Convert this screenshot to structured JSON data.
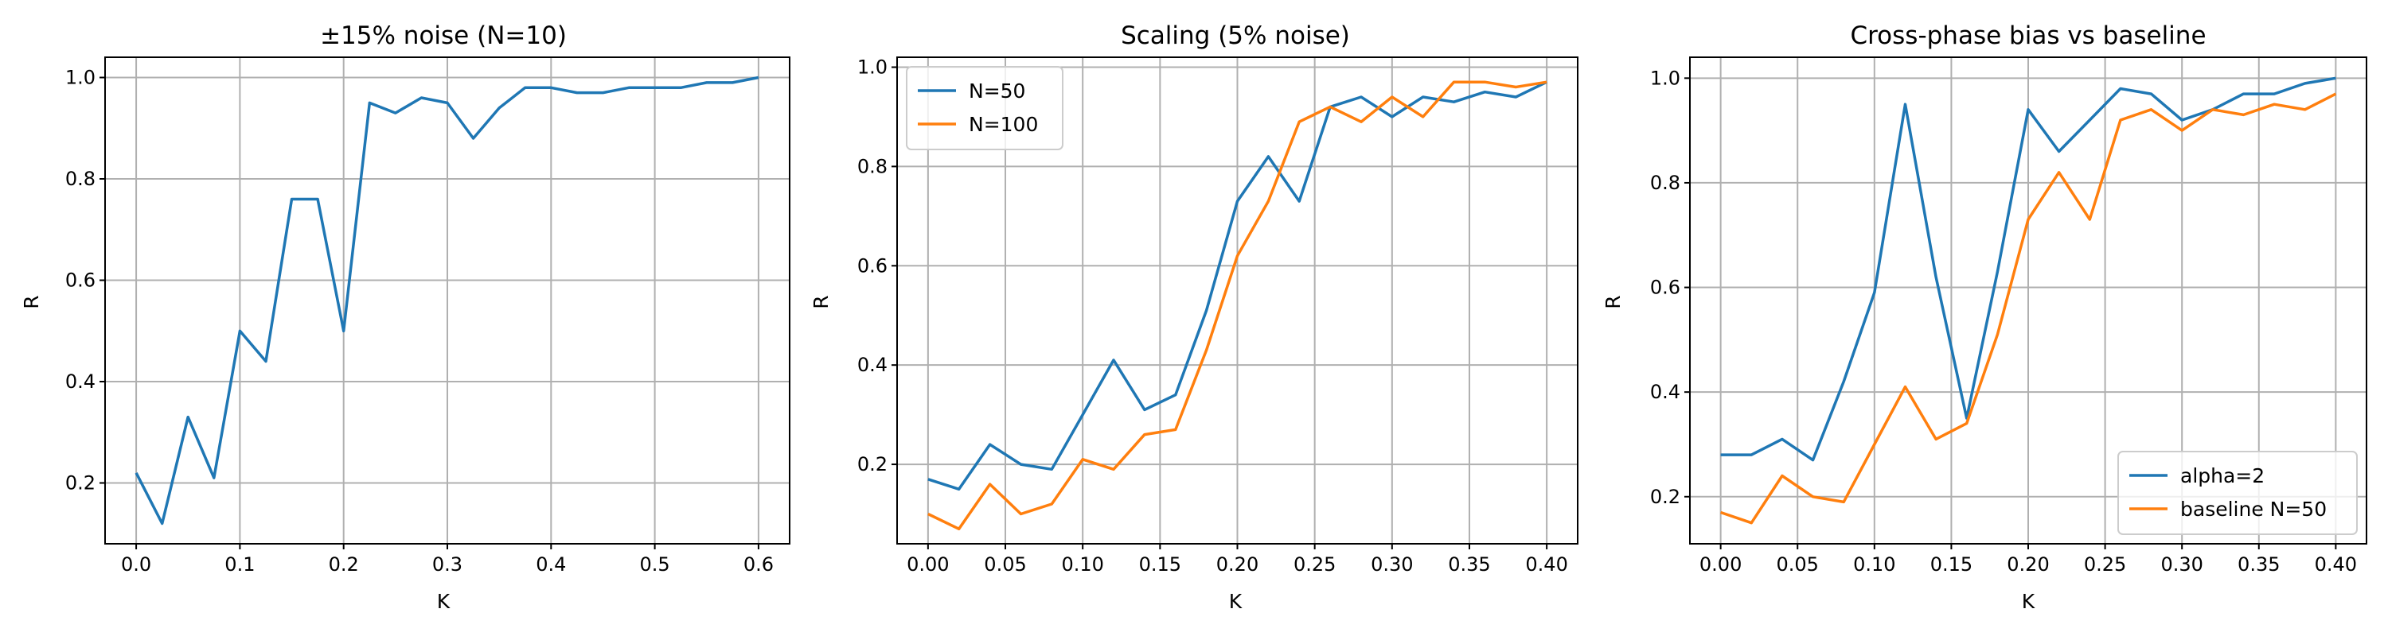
{
  "colors": {
    "series1": "#1f77b4",
    "series2": "#ff7f0e",
    "grid": "#b0b0b0"
  },
  "chart_data": [
    {
      "type": "line",
      "title": "±15% noise (N=10)",
      "xlabel": "K",
      "ylabel": "R",
      "xlim": [
        -0.03,
        0.63
      ],
      "ylim": [
        0.08,
        1.04
      ],
      "xticks": [
        0.0,
        0.1,
        0.2,
        0.3,
        0.4,
        0.5,
        0.6
      ],
      "xtick_labels": [
        "0.0",
        "0.1",
        "0.2",
        "0.3",
        "0.4",
        "0.5",
        "0.6"
      ],
      "yticks": [
        0.2,
        0.4,
        0.6,
        0.8,
        1.0
      ],
      "ytick_labels": [
        "0.2",
        "0.4",
        "0.6",
        "0.8",
        "1.0"
      ],
      "grid": true,
      "legend": null,
      "series": [
        {
          "color": "#1f77b4",
          "x": [
            0.0,
            0.025,
            0.05,
            0.075,
            0.1,
            0.125,
            0.15,
            0.175,
            0.2,
            0.225,
            0.25,
            0.275,
            0.3,
            0.325,
            0.35,
            0.375,
            0.4,
            0.425,
            0.45,
            0.475,
            0.5,
            0.525,
            0.55,
            0.575,
            0.6
          ],
          "y": [
            0.22,
            0.12,
            0.33,
            0.21,
            0.5,
            0.44,
            0.76,
            0.76,
            0.5,
            0.95,
            0.93,
            0.96,
            0.95,
            0.88,
            0.94,
            0.98,
            0.98,
            0.97,
            0.97,
            0.98,
            0.98,
            0.98,
            0.99,
            0.99,
            1.0
          ]
        }
      ]
    },
    {
      "type": "line",
      "title": "Scaling (5% noise)",
      "xlabel": "K",
      "ylabel": "R",
      "xlim": [
        -0.02,
        0.42
      ],
      "ylim": [
        0.04,
        1.02
      ],
      "xticks": [
        0.0,
        0.05,
        0.1,
        0.15,
        0.2,
        0.25,
        0.3,
        0.35,
        0.4
      ],
      "xtick_labels": [
        "0.00",
        "0.05",
        "0.10",
        "0.15",
        "0.20",
        "0.25",
        "0.30",
        "0.35",
        "0.40"
      ],
      "yticks": [
        0.2,
        0.4,
        0.6,
        0.8,
        1.0
      ],
      "ytick_labels": [
        "0.2",
        "0.4",
        "0.6",
        "0.8",
        "1.0"
      ],
      "grid": true,
      "legend": "upper left",
      "series": [
        {
          "name": "N=50",
          "color": "#1f77b4",
          "x": [
            0.0,
            0.02,
            0.04,
            0.06,
            0.08,
            0.1,
            0.12,
            0.14,
            0.16,
            0.18,
            0.2,
            0.22,
            0.24,
            0.26,
            0.28,
            0.3,
            0.32,
            0.34,
            0.36,
            0.38,
            0.4
          ],
          "y": [
            0.17,
            0.15,
            0.24,
            0.2,
            0.19,
            0.3,
            0.41,
            0.31,
            0.34,
            0.51,
            0.73,
            0.82,
            0.73,
            0.92,
            0.94,
            0.9,
            0.94,
            0.93,
            0.95,
            0.94,
            0.97
          ]
        },
        {
          "name": "N=100",
          "color": "#ff7f0e",
          "x": [
            0.0,
            0.02,
            0.04,
            0.06,
            0.08,
            0.1,
            0.12,
            0.14,
            0.16,
            0.18,
            0.2,
            0.22,
            0.24,
            0.26,
            0.28,
            0.3,
            0.32,
            0.34,
            0.36,
            0.38,
            0.4
          ],
          "y": [
            0.1,
            0.07,
            0.16,
            0.1,
            0.12,
            0.21,
            0.19,
            0.26,
            0.27,
            0.43,
            0.62,
            0.73,
            0.89,
            0.92,
            0.89,
            0.94,
            0.9,
            0.97,
            0.97,
            0.96,
            0.97
          ]
        }
      ]
    },
    {
      "type": "line",
      "title": "Cross-phase bias vs baseline",
      "xlabel": "K",
      "ylabel": "R",
      "xlim": [
        -0.02,
        0.42
      ],
      "ylim": [
        0.11,
        1.04
      ],
      "xticks": [
        0.0,
        0.05,
        0.1,
        0.15,
        0.2,
        0.25,
        0.3,
        0.35,
        0.4
      ],
      "xtick_labels": [
        "0.00",
        "0.05",
        "0.10",
        "0.15",
        "0.20",
        "0.25",
        "0.30",
        "0.35",
        "0.40"
      ],
      "yticks": [
        0.2,
        0.4,
        0.6,
        0.8,
        1.0
      ],
      "ytick_labels": [
        "0.2",
        "0.4",
        "0.6",
        "0.8",
        "1.0"
      ],
      "grid": true,
      "legend": "lower right",
      "series": [
        {
          "name": "alpha=2",
          "color": "#1f77b4",
          "x": [
            0.0,
            0.02,
            0.04,
            0.06,
            0.08,
            0.1,
            0.12,
            0.14,
            0.16,
            0.18,
            0.2,
            0.22,
            0.24,
            0.26,
            0.28,
            0.3,
            0.32,
            0.34,
            0.36,
            0.38,
            0.4
          ],
          "y": [
            0.28,
            0.28,
            0.31,
            0.27,
            0.42,
            0.59,
            0.95,
            0.62,
            0.35,
            0.63,
            0.94,
            0.86,
            0.92,
            0.98,
            0.97,
            0.92,
            0.94,
            0.97,
            0.97,
            0.99,
            1.0
          ]
        },
        {
          "name": "baseline N=50",
          "color": "#ff7f0e",
          "x": [
            0.0,
            0.02,
            0.04,
            0.06,
            0.08,
            0.1,
            0.12,
            0.14,
            0.16,
            0.18,
            0.2,
            0.22,
            0.24,
            0.26,
            0.28,
            0.3,
            0.32,
            0.34,
            0.36,
            0.38,
            0.4
          ],
          "y": [
            0.17,
            0.15,
            0.24,
            0.2,
            0.19,
            0.3,
            0.41,
            0.31,
            0.34,
            0.51,
            0.73,
            0.82,
            0.73,
            0.92,
            0.94,
            0.9,
            0.94,
            0.93,
            0.95,
            0.94,
            0.97
          ]
        }
      ]
    }
  ]
}
